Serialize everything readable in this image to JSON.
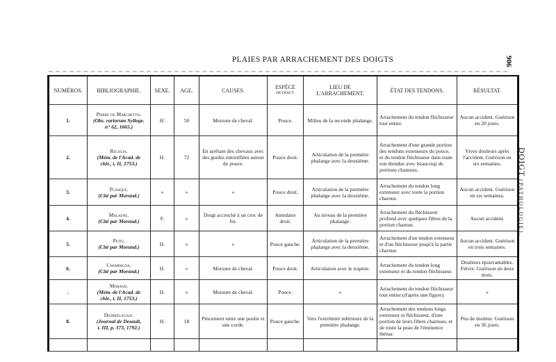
{
  "page": {
    "title": "PLAIES PAR ARRACHEMENT DES DOIGTS",
    "page_number": "906",
    "side_title": "DOIGT",
    "side_subtitle": "(PATHOLOGIE)."
  },
  "headers": [
    "NUMÉROS.",
    "BIBLIOGRAPHIE.",
    "SEXE.",
    "AGE.",
    "CAUSES.",
    "ESPÈCE",
    "DE DOIGT.",
    "LIEU DE L'ARRACHEMENT.",
    "ÉTAT DES TENDONS.",
    "RÉSULTAT."
  ],
  "rows": [
    {
      "num": "1.",
      "author": "Pierre de Marchettis.",
      "ref": "(Obs. rariorum Sylloge.",
      "ref2": "n° 62, 1665.)",
      "sexe": "H.",
      "age": "50",
      "cause": "Morsure de cheval.",
      "doigt": "Pouce.",
      "lieu": "Milieu de la seconde phalange.",
      "tendons": "Arrachement du tendon fléchisseur tout entier.",
      "resultat": "Aucun accident. Guérison en 20 jours."
    },
    {
      "num": "2.",
      "author": "Recolin.",
      "ref": "(Mém. de l'Acad. de",
      "ref2": "chir., t. II, 1753.)",
      "sexe": "H.",
      "age": "72",
      "cause": "En arrêtant des chevaux avec des guides entortillées autour du pouce.",
      "doigt": "Pouce droit.",
      "lieu": "Articulation de la première phalange avec la deuxième.",
      "tendons": "Arrachement d'une grande portion des tendons extenseurs du pouce, et du tendon fléchisseur dans toute son étendue avec beaucoup de portions charnues.",
      "resultat": "Vives douleurs après l'accident. Guérison en six semaines."
    },
    {
      "num": "3.",
      "author": "Planque.",
      "ref": "(Cité par Morand.)",
      "ref2": "",
      "sexe": "»",
      "age": "»",
      "cause": "»",
      "doigt": "Pouce droit.",
      "lieu": "Articulation de la première phalange avec la deuxième.",
      "tendons": "Arrachement du tendon long extenseur avec toute la portion charnue.",
      "resultat": "Aucun accident. Guérison en six semaines."
    },
    {
      "num": "4.",
      "author": "Malaene.",
      "ref": "(Cité par Morand.)",
      "ref2": "",
      "sexe": "F.",
      "age": "»",
      "cause": "Doigt accroché à un croc de fer.",
      "doigt": "Annulaire droit.",
      "lieu": "Au niveau de la première phalange.",
      "tendons": "Arrachement du fléchisseur profond avec quelques fibres de la portion charnue.",
      "resultat": "Aucun accident."
    },
    {
      "num": "5.",
      "author": "Petit,",
      "ref": "(Cité par Morand.)",
      "ref2": "",
      "sexe": "H.",
      "age": "»",
      "cause": "»",
      "doigt": "Pouce gauche.",
      "lieu": "Articulation de la première phalange avec la deuxième.",
      "tendons": "Arrachement d'un tendon extenseur et d'un fléchisseur jusqu'à la partie charnue.",
      "resultat": "Aucun accident. Guérison en trois semaines."
    },
    {
      "num": "6.",
      "author": "Champagna.",
      "ref": "(Cité par Morand.)",
      "ref2": "",
      "sexe": "H.",
      "age": "»",
      "cause": "Morsure de cheval.",
      "doigt": "Pouce droit.",
      "lieu": "Articulation avec le trapèze.",
      "tendons": "Arrachement du tendon long extenseur et du tendon fléchisseur.",
      "resultat": "Douleurs épouvantables. Fièvre. Guérison en deux mois."
    },
    {
      "num": ".",
      "author": "Morand.",
      "ref": "(Mém. de l'Acad. de",
      "ref2": "chir., t. II, 1753.)",
      "sexe": "H.",
      "age": "»",
      "cause": "Morsure de cheval.",
      "doigt": "Pouce.",
      "lieu": "»",
      "tendons": "Arrachement du tendon fléchisseur tout entier (d'après une figure).",
      "resultat": "»"
    },
    {
      "num": "8.",
      "author": "Desbrégagaix.",
      "ref": "(Journal de Desault,",
      "ref2": "t. III, p. 373, 1792.)",
      "sexe": "H.",
      "age": "18",
      "cause": "Pincement entre une poulie et une corde.",
      "doigt": "Pouce gauche.",
      "lieu": "Vers l'extrémité inférieure de la première phalange.",
      "tendons": "Arrachement des tendons longs extenseur et fléchisseur, d'une portion de leurs fibres charnues, et de toute la peau de l'éminence thénar.",
      "resultat": "Peu de douleur. Guérison en 36 jours."
    }
  ]
}
